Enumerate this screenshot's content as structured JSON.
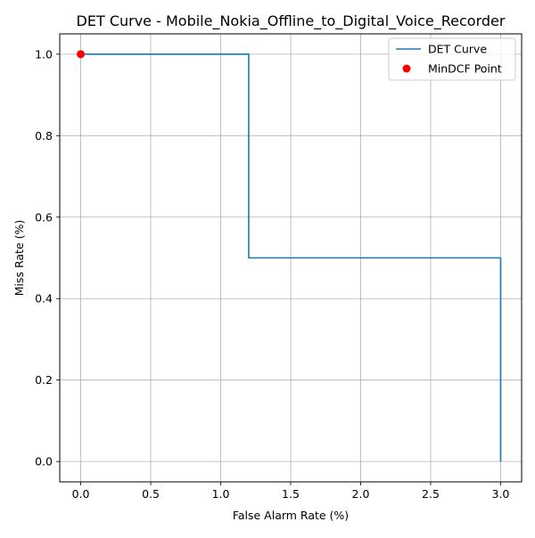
{
  "chart_data": {
    "type": "line",
    "title": "DET Curve - Mobile_Nokia_Offline_to_Digital_Voice_Recorder",
    "xlabel": "False Alarm Rate (%)",
    "ylabel": "Miss Rate (%)",
    "xlim": [
      -0.15,
      3.15
    ],
    "ylim": [
      -0.05,
      1.05
    ],
    "xticks": [
      0.0,
      0.5,
      1.0,
      1.5,
      2.0,
      2.5,
      3.0
    ],
    "xtick_labels": [
      "0.0",
      "0.5",
      "1.0",
      "1.5",
      "2.0",
      "2.5",
      "3.0"
    ],
    "yticks": [
      0.0,
      0.2,
      0.4,
      0.6,
      0.8,
      1.0
    ],
    "ytick_labels": [
      "0.0",
      "0.2",
      "0.4",
      "0.6",
      "0.8",
      "1.0"
    ],
    "grid": true,
    "legend_position": "top-right",
    "series": [
      {
        "name": "DET Curve",
        "kind": "line",
        "color": "#1f77b4",
        "x": [
          0.0,
          1.2,
          1.2,
          3.0,
          3.0
        ],
        "y": [
          1.0,
          1.0,
          0.5,
          0.5,
          0.0
        ]
      },
      {
        "name": "MinDCF Point",
        "kind": "scatter",
        "color": "#ff0000",
        "x": [
          0.0
        ],
        "y": [
          1.0
        ]
      }
    ]
  }
}
